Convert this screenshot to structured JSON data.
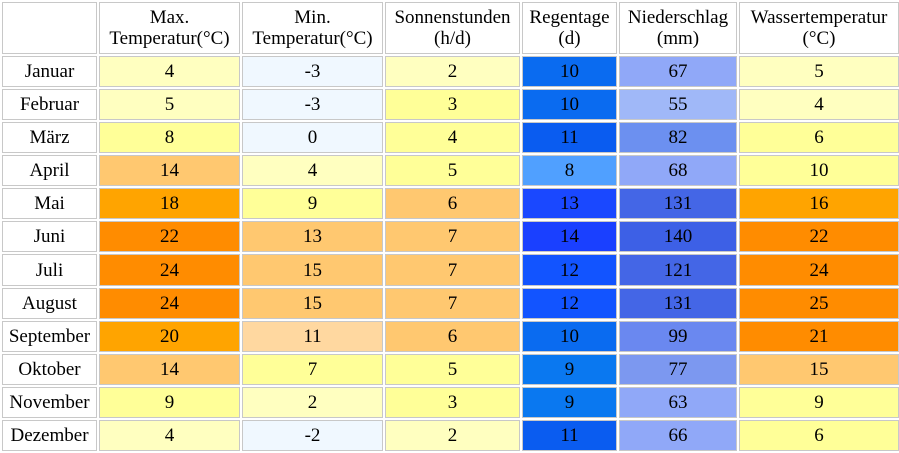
{
  "columns": [
    {
      "line1": "",
      "line2": ""
    },
    {
      "line1": "Max.",
      "line2": "Temperatur(°C)"
    },
    {
      "line1": "Min.",
      "line2": "Temperatur(°C)"
    },
    {
      "line1": "Sonnenstunden",
      "line2": "(h/d)"
    },
    {
      "line1": "Regentage",
      "line2": "(d)"
    },
    {
      "line1": "Niederschlag",
      "line2": "(mm)"
    },
    {
      "line1": "Wassertemperatur",
      "line2": "(°C)"
    }
  ],
  "rows": [
    {
      "month": "Januar",
      "values": [
        "4",
        "-3",
        "2",
        "10",
        "67",
        "5"
      ]
    },
    {
      "month": "Februar",
      "values": [
        "5",
        "-3",
        "3",
        "10",
        "55",
        "4"
      ]
    },
    {
      "month": "März",
      "values": [
        "8",
        "0",
        "4",
        "11",
        "82",
        "6"
      ]
    },
    {
      "month": "April",
      "values": [
        "14",
        "4",
        "5",
        "8",
        "68",
        "10"
      ]
    },
    {
      "month": "Mai",
      "values": [
        "18",
        "9",
        "6",
        "13",
        "131",
        "16"
      ]
    },
    {
      "month": "Juni",
      "values": [
        "22",
        "13",
        "7",
        "14",
        "140",
        "22"
      ]
    },
    {
      "month": "Juli",
      "values": [
        "24",
        "15",
        "7",
        "12",
        "121",
        "24"
      ]
    },
    {
      "month": "August",
      "values": [
        "24",
        "15",
        "7",
        "12",
        "131",
        "25"
      ]
    },
    {
      "month": "September",
      "values": [
        "20",
        "11",
        "6",
        "10",
        "99",
        "21"
      ]
    },
    {
      "month": "Oktober",
      "values": [
        "14",
        "7",
        "5",
        "9",
        "77",
        "15"
      ]
    },
    {
      "month": "November",
      "values": [
        "9",
        "2",
        "3",
        "9",
        "63",
        "9"
      ]
    },
    {
      "month": "Dezember",
      "values": [
        "4",
        "-2",
        "2",
        "11",
        "66",
        "6"
      ]
    }
  ],
  "cell_colors": [
    [
      "#ffffc0",
      "#f0f8ff",
      "#ffffc0",
      "#0a6bf0",
      "#90a8f8",
      "#ffffc0"
    ],
    [
      "#ffffc0",
      "#f0f8ff",
      "#ffff98",
      "#0a6bf0",
      "#a0b8f8",
      "#ffffc0"
    ],
    [
      "#ffff98",
      "#f0f8ff",
      "#ffff98",
      "#0a5cf0",
      "#6c90f0",
      "#ffff98"
    ],
    [
      "#ffc870",
      "#ffffc0",
      "#ffff98",
      "#50a0ff",
      "#90a8f8",
      "#ffff98"
    ],
    [
      "#ffa400",
      "#ffff98",
      "#ffc870",
      "#1a48ff",
      "#4466e6",
      "#ffa400"
    ],
    [
      "#ff8c00",
      "#ffc870",
      "#ffc870",
      "#1a40ff",
      "#3d60e6",
      "#ff8c00"
    ],
    [
      "#ff8c00",
      "#ffc870",
      "#ffc870",
      "#1254ff",
      "#4466e6",
      "#ff8c00"
    ],
    [
      "#ff8c00",
      "#ffc870",
      "#ffc870",
      "#1254ff",
      "#4466e6",
      "#ff8c00"
    ],
    [
      "#ffa400",
      "#ffd8a0",
      "#ffc870",
      "#0a6bf0",
      "#6a88f0",
      "#ff8c00"
    ],
    [
      "#ffc870",
      "#ffff98",
      "#ffff98",
      "#0a78f0",
      "#7c98f0",
      "#ffc870"
    ],
    [
      "#ffff98",
      "#ffffc0",
      "#ffff98",
      "#0a78f0",
      "#90a8f8",
      "#ffff98"
    ],
    [
      "#ffffc0",
      "#f0f8ff",
      "#ffffc0",
      "#0a5cf0",
      "#90a8f8",
      "#ffff98"
    ]
  ],
  "column_keys": [
    "max_temp",
    "min_temp",
    "sun",
    "rain_days",
    "precip",
    "water_temp"
  ]
}
